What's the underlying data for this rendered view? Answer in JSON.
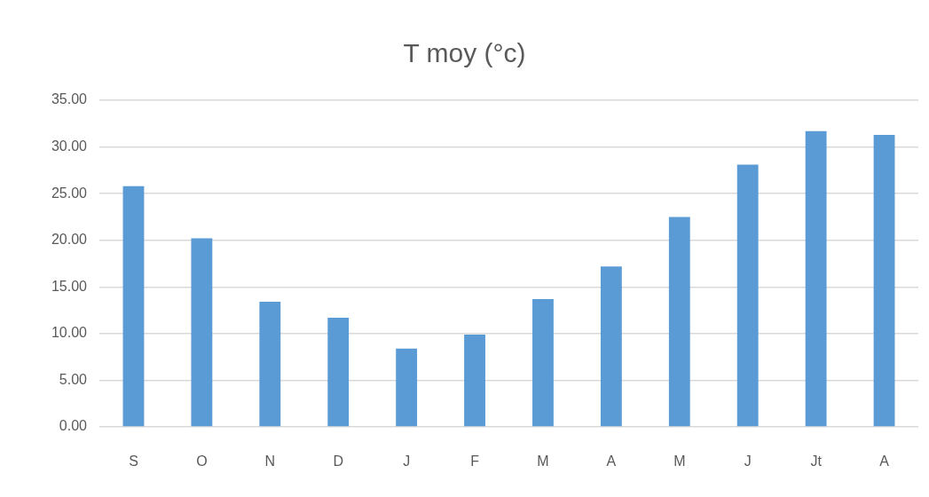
{
  "chart_data": {
    "type": "bar",
    "title": "T moy (°c)",
    "categories": [
      "S",
      "O",
      "N",
      "D",
      "J",
      "F",
      "M",
      "A",
      "M",
      "J",
      "Jt",
      "A"
    ],
    "values": [
      25.8,
      20.2,
      13.4,
      11.7,
      8.4,
      9.9,
      13.7,
      17.2,
      22.5,
      28.1,
      31.7,
      31.3
    ],
    "color": "#5b9bd5",
    "ylim": [
      0,
      35
    ],
    "yticks": [
      {
        "value": 0,
        "label": "0.00"
      },
      {
        "value": 5,
        "label": "5.00"
      },
      {
        "value": 10,
        "label": "10.00"
      },
      {
        "value": 15,
        "label": "15.00"
      },
      {
        "value": 20,
        "label": "20.00"
      },
      {
        "value": 25,
        "label": "25.00"
      },
      {
        "value": 30,
        "label": "30.00"
      },
      {
        "value": 35,
        "label": "35.00"
      }
    ],
    "grid": "y"
  }
}
